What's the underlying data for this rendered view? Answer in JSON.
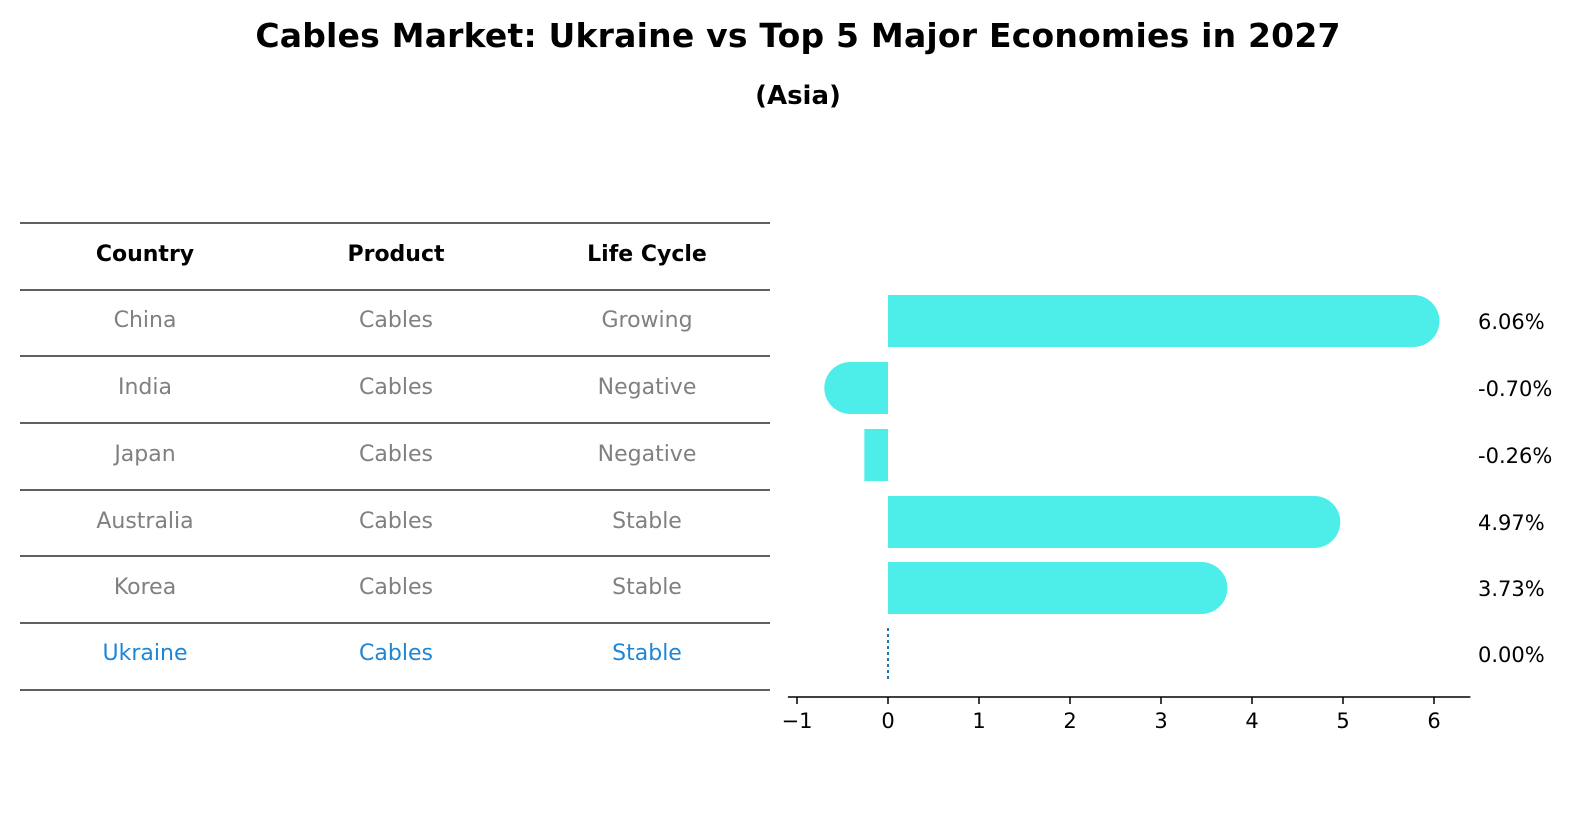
{
  "title": "Cables Market: Ukraine vs Top 5 Major Economies in 2027",
  "subtitle": "(Asia)",
  "colors": {
    "bar": "#4DEEEA",
    "highlight_text": "#1F86D6",
    "muted_text": "#808080",
    "zero_line": "#1F77B4"
  },
  "table": {
    "headers": [
      "Country",
      "Product",
      "Life Cycle"
    ],
    "rows": [
      {
        "country": "China",
        "product": "Cables",
        "life_cycle": "Growing",
        "highlight": false
      },
      {
        "country": "India",
        "product": "Cables",
        "life_cycle": "Negative",
        "highlight": false
      },
      {
        "country": "Japan",
        "product": "Cables",
        "life_cycle": "Negative",
        "highlight": false
      },
      {
        "country": "Australia",
        "product": "Cables",
        "life_cycle": "Stable",
        "highlight": false
      },
      {
        "country": "Korea",
        "product": "Cables",
        "life_cycle": "Stable",
        "highlight": false
      },
      {
        "country": "Ukraine",
        "product": "Cables",
        "life_cycle": "Stable",
        "highlight": true
      }
    ]
  },
  "chart_data": {
    "type": "bar",
    "orientation": "horizontal",
    "title": "Cables Market: Ukraine vs Top 5 Major Economies in 2027",
    "subtitle": "(Asia)",
    "categories": [
      "China",
      "India",
      "Japan",
      "Australia",
      "Korea",
      "Ukraine"
    ],
    "values": [
      6.06,
      -0.7,
      -0.26,
      4.97,
      3.73,
      0.0
    ],
    "value_labels": [
      "6.06%",
      "-0.70%",
      "-0.26%",
      "4.97%",
      "3.73%",
      "0.00%"
    ],
    "xlim": [
      -1.1,
      6.4
    ],
    "xticks": [
      -1,
      0,
      1,
      2,
      3,
      4,
      5,
      6
    ],
    "xtick_labels": [
      "−1",
      "0",
      "1",
      "2",
      "3",
      "4",
      "5",
      "6"
    ],
    "xlabel": "",
    "ylabel": "",
    "grid": false,
    "legend": "none"
  }
}
